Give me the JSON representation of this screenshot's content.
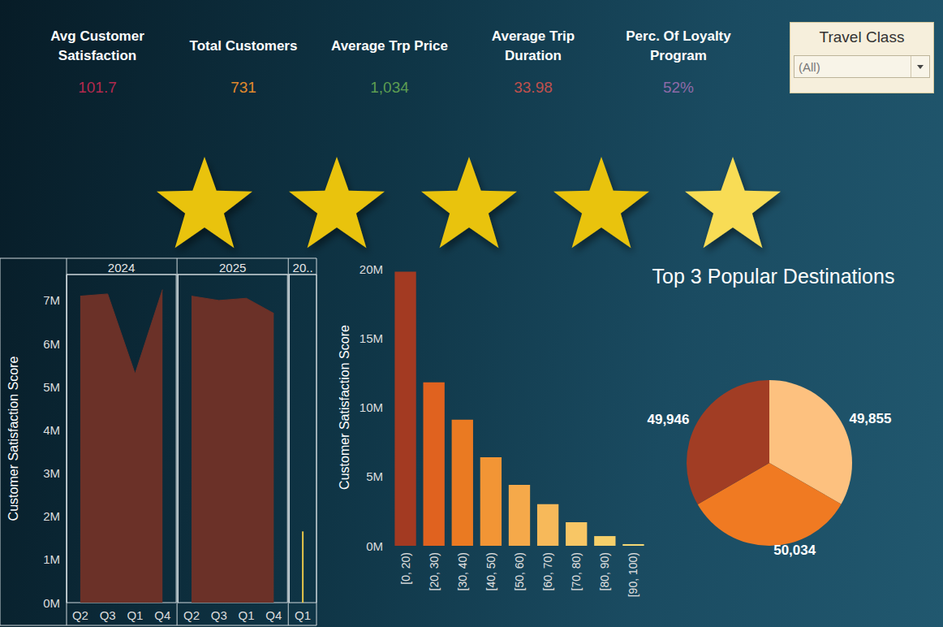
{
  "kpis": [
    {
      "title": "Avg Customer Satisfaction",
      "value": "101.7",
      "color": "#b3294e"
    },
    {
      "title": "Total Customers",
      "value": "731",
      "color": "#e08a2c"
    },
    {
      "title": "Average Trp Price",
      "value": "1,034",
      "color": "#5d9e52"
    },
    {
      "title": "Average Trip Duration",
      "value": "33.98",
      "color": "#c0504d"
    },
    {
      "title": "Perc. Of Loyalty Program",
      "value": "52%",
      "color": "#8e6aa8"
    }
  ],
  "filter": {
    "title": "Travel Class",
    "value": "(All)"
  },
  "chart_data": [
    {
      "type": "area",
      "ylabel": "Customer Satisfaction Score",
      "facets": [
        {
          "label": "2024",
          "categories": [
            "Q2",
            "Q3",
            "Q1",
            "Q4"
          ],
          "values": [
            7100000,
            7150000,
            5300000,
            7250000
          ],
          "color": "#6b3128"
        },
        {
          "label": "2025",
          "categories": [
            "Q2",
            "Q3",
            "Q1",
            "Q4"
          ],
          "values": [
            7100000,
            7000000,
            7050000,
            6700000
          ],
          "color": "#6b3128"
        },
        {
          "label": "20..",
          "categories": [
            "Q1"
          ],
          "values": [
            1650000
          ],
          "color": "#e8c64a"
        }
      ],
      "ylim": [
        0,
        7600000
      ],
      "yticks": [
        {
          "value": 0,
          "label": "0M"
        },
        {
          "value": 1000000,
          "label": "1M"
        },
        {
          "value": 2000000,
          "label": "2M"
        },
        {
          "value": 3000000,
          "label": "3M"
        },
        {
          "value": 4000000,
          "label": "4M"
        },
        {
          "value": 5000000,
          "label": "5M"
        },
        {
          "value": 6000000,
          "label": "6M"
        },
        {
          "value": 7000000,
          "label": "7M"
        }
      ],
      "grid": false
    },
    {
      "type": "bar",
      "ylabel": "Customer Satisfaction Score",
      "categories": [
        "[0, 20)",
        "[20, 30)",
        "[30, 40)",
        "[40, 50)",
        "[50, 60)",
        "[60, 70)",
        "[70, 80)",
        "[80, 90)",
        "[90, 100)"
      ],
      "values": [
        19800000,
        11800000,
        9100000,
        6400000,
        4400000,
        3000000,
        1700000,
        700000,
        120000
      ],
      "colors": [
        "#a33a22",
        "#e0621f",
        "#ea7a22",
        "#f29535",
        "#f5a94a",
        "#f7b95a",
        "#f8c665",
        "#f6cf6a",
        "#f5d875"
      ],
      "ylim": [
        0,
        20000000
      ],
      "yticks": [
        {
          "value": 0,
          "label": "0M"
        },
        {
          "value": 5000000,
          "label": "5M"
        },
        {
          "value": 10000000,
          "label": "10M"
        },
        {
          "value": 15000000,
          "label": "15M"
        },
        {
          "value": 20000000,
          "label": "20M"
        }
      ],
      "grid": false
    },
    {
      "type": "pie",
      "title": "Top 3 Popular Destinations",
      "values": [
        49855,
        50034,
        49946
      ],
      "value_labels": [
        "49,855",
        "50,034",
        "49,946"
      ],
      "colors": [
        "#fdc17f",
        "#f07a22",
        "#a13d24"
      ],
      "data_labels": true
    }
  ]
}
